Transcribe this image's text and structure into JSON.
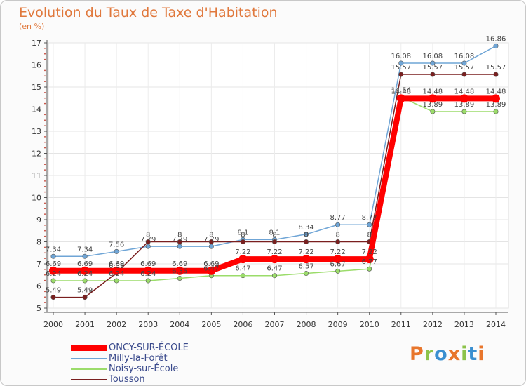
{
  "header": {
    "title": "Evolution du Taux de Taxe d'Habitation",
    "unit": "(en %)"
  },
  "logo": {
    "letters": [
      "P",
      "r",
      "o",
      "x",
      "i",
      "t",
      "i"
    ],
    "colors": [
      "#e8762c",
      "#8cc34a",
      "#3a8fd0",
      "#e8762c",
      "#8cc34a",
      "#3a8fd0",
      "#e8762c"
    ]
  },
  "chart_data": {
    "type": "line",
    "x": [
      2000,
      2001,
      2002,
      2003,
      2004,
      2005,
      2006,
      2007,
      2008,
      2009,
      2010,
      2011,
      2012,
      2013,
      2014
    ],
    "ylim": [
      5,
      17
    ],
    "yticks": [
      5,
      6,
      7,
      8,
      9,
      10,
      11,
      12,
      13,
      14,
      15,
      16,
      17
    ],
    "grid": true,
    "legend": "bottom-left",
    "series": [
      {
        "name": "ONCY-SUR-ÉCOLE",
        "color": "#ff0000",
        "values": [
          6.69,
          6.69,
          6.69,
          6.69,
          6.69,
          6.69,
          7.22,
          7.22,
          7.22,
          7.22,
          7.22,
          14.48,
          14.48,
          14.48,
          14.48
        ]
      },
      {
        "name": "Milly-la-Forêt",
        "color": "#6fa5d6",
        "values": [
          7.34,
          7.34,
          7.56,
          7.79,
          7.79,
          7.79,
          8.1,
          8.1,
          8.34,
          8.77,
          8.77,
          16.08,
          16.08,
          16.08,
          16.86
        ]
      },
      {
        "name": "Noisy-sur-École",
        "color": "#9bdc6a",
        "values": [
          6.24,
          6.24,
          6.24,
          6.24,
          6.35,
          6.47,
          6.47,
          6.47,
          6.57,
          6.67,
          6.77,
          14.54,
          13.89,
          13.89,
          13.89
        ]
      },
      {
        "name": "Tousson",
        "color": "#7a1f1f",
        "values": [
          5.49,
          5.49,
          6.59,
          8,
          8,
          8,
          8,
          8,
          8,
          8,
          8,
          15.57,
          15.57,
          15.57,
          15.57
        ]
      }
    ]
  }
}
